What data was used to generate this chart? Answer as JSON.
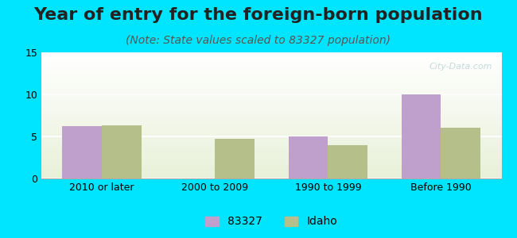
{
  "title": "Year of entry for the foreign-born population",
  "subtitle": "(Note: State values scaled to 83327 population)",
  "categories": [
    "2010 or later",
    "2000 to 2009",
    "1990 to 1999",
    "Before 1990"
  ],
  "series_83327": [
    6.2,
    0,
    5.0,
    10.0
  ],
  "series_idaho": [
    6.3,
    4.7,
    4.0,
    6.0
  ],
  "color_83327": "#bf9fcc",
  "color_idaho": "#b5bf8a",
  "ylim": [
    0,
    15
  ],
  "yticks": [
    0,
    5,
    10,
    15
  ],
  "background_outer": "#00e5ff",
  "legend_label_1": "83327",
  "legend_label_2": "Idaho",
  "bar_width": 0.35,
  "title_fontsize": 16,
  "subtitle_fontsize": 10,
  "tick_fontsize": 9,
  "legend_fontsize": 10,
  "watermark": "City-Data.com"
}
